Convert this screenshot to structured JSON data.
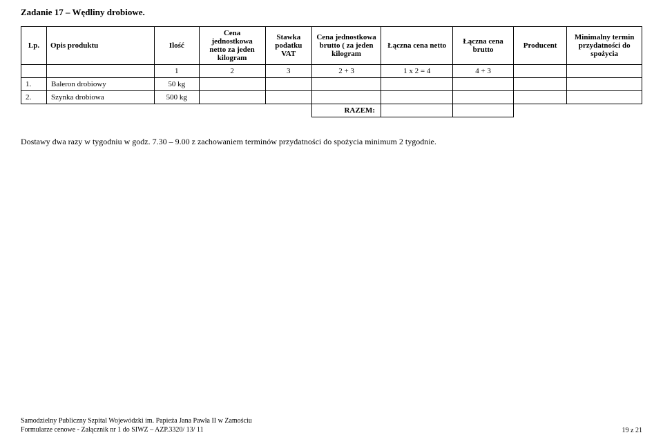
{
  "title": "Zadanie 17 – Wędliny drobiowe.",
  "headers": {
    "lp": "Lp.",
    "opis": "Opis produktu",
    "ilosc": "Ilość",
    "cena_netto": "Cena jednostkowa netto za jeden kilogram",
    "stawka": "Stawka podatku VAT",
    "cena_brutto": "Cena jednostkowa brutto ( za jeden kilogram",
    "laczna_netto": "Łączna cena netto",
    "laczna_brutto": "Łączna cena brutto",
    "producent": "Producent",
    "minimalny": "Minimalny termin przydatności do spożycia"
  },
  "formula_row": {
    "ilosc": "1",
    "cena_netto": "2",
    "stawka": "3",
    "cena_brutto": "2 + 3",
    "laczna_netto": "1 x 2 = 4",
    "laczna_brutto": "4 + 3"
  },
  "rows": [
    {
      "lp": "1.",
      "opis": "Baleron drobiowy",
      "ilosc": "50 kg"
    },
    {
      "lp": "2.",
      "opis": "Szynka drobiowa",
      "ilosc": "500 kg"
    }
  ],
  "razem_label": "RAZEM:",
  "note": "Dostawy dwa razy w tygodniu w godz. 7.30 – 9.00 z zachowaniem terminów przydatności do spożycia minimum 2 tygodnie.",
  "footer": {
    "line1": "Samodzielny Publiczny Szpital Wojewódzki im. Papieża Jana Pawła II w Zamościu",
    "line2": "Formularze cenowe - Załącznik nr 1 do SIWZ – AZP.3320/ 13/ 11",
    "page": "19 z 21"
  }
}
